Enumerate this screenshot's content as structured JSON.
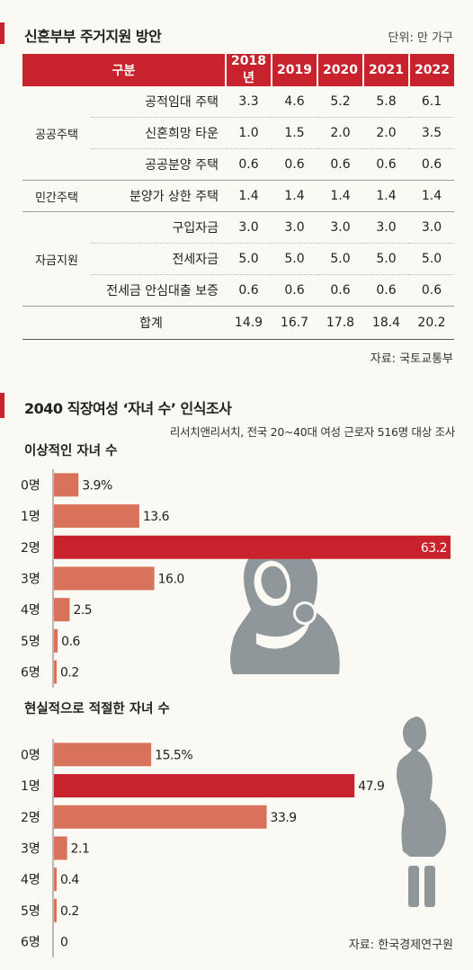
{
  "section1": {
    "title": "신혼부부 주거지원 방안",
    "unit": "단위: 만 가구",
    "table": {
      "header": [
        "구분",
        "2018년",
        "2019",
        "2020",
        "2021",
        "2022"
      ],
      "groups": [
        {
          "name": "공공주택",
          "rows": [
            {
              "item": "공적임대 주택",
              "values": [
                "3.3",
                "4.6",
                "5.2",
                "5.8",
                "6.1"
              ]
            },
            {
              "item": "신혼희망 타운",
              "values": [
                "1.0",
                "1.5",
                "2.0",
                "2.0",
                "3.5"
              ]
            },
            {
              "item": "공공분양 주택",
              "values": [
                "0.6",
                "0.6",
                "0.6",
                "0.6",
                "0.6"
              ]
            }
          ]
        },
        {
          "name": "민간주택",
          "rows": [
            {
              "item": "분양가 상한 주택",
              "values": [
                "1.4",
                "1.4",
                "1.4",
                "1.4",
                "1.4"
              ]
            }
          ]
        },
        {
          "name": "자금지원",
          "rows": [
            {
              "item": "구입자금",
              "values": [
                "3.0",
                "3.0",
                "3.0",
                "3.0",
                "3.0"
              ]
            },
            {
              "item": "전세자금",
              "values": [
                "5.0",
                "5.0",
                "5.0",
                "5.0",
                "5.0"
              ]
            },
            {
              "item": "전세금 안심대출 보증",
              "values": [
                "0.6",
                "0.6",
                "0.6",
                "0.6",
                "0.6"
              ]
            }
          ]
        }
      ],
      "total": {
        "label": "합계",
        "values": [
          "14.9",
          "16.7",
          "17.8",
          "18.4",
          "20.2"
        ]
      }
    },
    "source": "자료: 국토교통부"
  },
  "section2": {
    "title": "2040 직장여성 ‘자녀 수’ 인식조사",
    "subtitle": "리서치앤리서치, 전국 20~40대 여성 근로자 516명 대상 조사",
    "source": "자료: 한국경제연구원"
  },
  "chart_data": [
    {
      "type": "bar",
      "orientation": "horizontal",
      "title": "이상적인 자녀 수",
      "categories": [
        "0명",
        "1명",
        "2명",
        "3명",
        "4명",
        "5명",
        "6명"
      ],
      "values": [
        3.9,
        13.6,
        63.2,
        16.0,
        2.5,
        0.6,
        0.2
      ],
      "labels": [
        "3.9%",
        "13.6",
        "63.2",
        "16.0",
        "2.5",
        "0.6",
        "0.2"
      ],
      "highlight_index": 2,
      "xlim": [
        0,
        63.2
      ],
      "colors": {
        "bar": "#d9725a",
        "highlight": "#c8232c"
      }
    },
    {
      "type": "bar",
      "orientation": "horizontal",
      "title": "현실적으로 적절한 자녀 수",
      "categories": [
        "0명",
        "1명",
        "2명",
        "3명",
        "4명",
        "5명",
        "6명"
      ],
      "values": [
        15.5,
        47.9,
        33.9,
        2.1,
        0.4,
        0.2,
        0
      ],
      "labels": [
        "15.5%",
        "47.9",
        "33.9",
        "2.1",
        "0.4",
        "0.2",
        "0"
      ],
      "highlight_index": 1,
      "xlim": [
        0,
        63.2
      ],
      "colors": {
        "bar": "#d9725a",
        "highlight": "#c8232c"
      }
    }
  ],
  "colors": {
    "accent": "#c8232c",
    "bar": "#d9725a",
    "silhouette": "#8f979b"
  },
  "icons": [
    "mother-baby-silhouette-icon",
    "pregnant-woman-silhouette-icon"
  ]
}
